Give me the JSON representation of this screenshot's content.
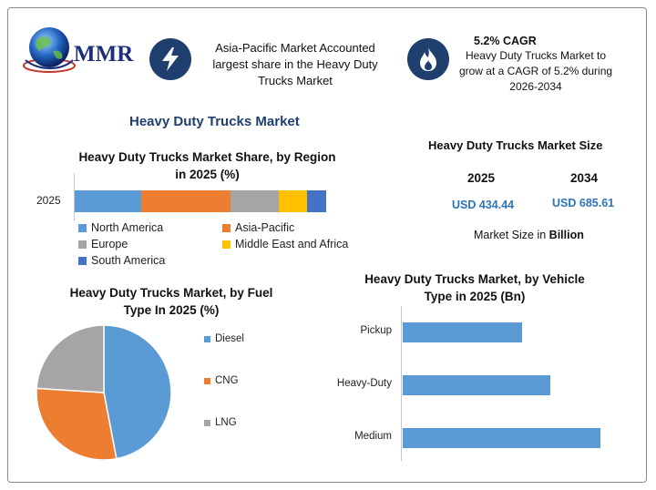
{
  "logo": {
    "text": "MMR"
  },
  "header": {
    "card1": {
      "icon": "lightning-bolt-icon",
      "text": "Asia-Pacific Market Accounted largest share in the Heavy Duty Trucks Market"
    },
    "card2": {
      "icon": "flame-icon",
      "title": "5.2% CAGR",
      "text": "Heavy Duty Trucks Market to grow at a CAGR of 5.2% during 2026-2034"
    }
  },
  "main_title": "Heavy Duty Trucks Market",
  "market_size": {
    "title": "Heavy Duty Trucks Market Size",
    "years": [
      "2025",
      "2034"
    ],
    "values": [
      "USD 434.44",
      "USD 685.61"
    ],
    "note": "Market Size in Billion"
  },
  "colors": {
    "blue": "#5b9bd5",
    "orange": "#ed7d31",
    "gray": "#a5a5a5",
    "yellow": "#ffc000",
    "navy": "#4472c4",
    "dark_blue": "#1f3f6e"
  },
  "chart_data": [
    {
      "type": "bar",
      "orientation": "horizontal-stacked",
      "title": "Heavy Duty Trucks Market Share, by Region in 2025 (%)",
      "categories": [
        "2025"
      ],
      "series": [
        {
          "name": "North America",
          "values": [
            26.5
          ],
          "color": "#5b9bd5"
        },
        {
          "name": "Asia-Pacific",
          "values": [
            35.5
          ],
          "color": "#ed7d31"
        },
        {
          "name": "Europe",
          "values": [
            19
          ],
          "color": "#a5a5a5"
        },
        {
          "name": "Middle East and Africa",
          "values": [
            11.5
          ],
          "color": "#ffc000"
        },
        {
          "name": "South America",
          "values": [
            7.5
          ],
          "color": "#4472c4"
        }
      ],
      "legend": "bottom"
    },
    {
      "type": "pie",
      "title": "Heavy Duty Trucks Market, by Fuel Type In 2025 (%)",
      "labels": [
        "Diesel",
        "CNG",
        "LNG"
      ],
      "values": [
        47,
        29,
        24
      ],
      "colors": [
        "#5b9bd5",
        "#ed7d31",
        "#a5a5a5"
      ],
      "legend": "right"
    },
    {
      "type": "bar",
      "orientation": "horizontal",
      "title": "Heavy Duty Trucks Market, by Vehicle Type in 2025 (Bn)",
      "categories": [
        "Pickup",
        "Heavy-Duty",
        "Medium"
      ],
      "values": [
        125,
        155,
        208
      ],
      "xlim": [
        0,
        220
      ],
      "color": "#5b9bd5"
    }
  ]
}
